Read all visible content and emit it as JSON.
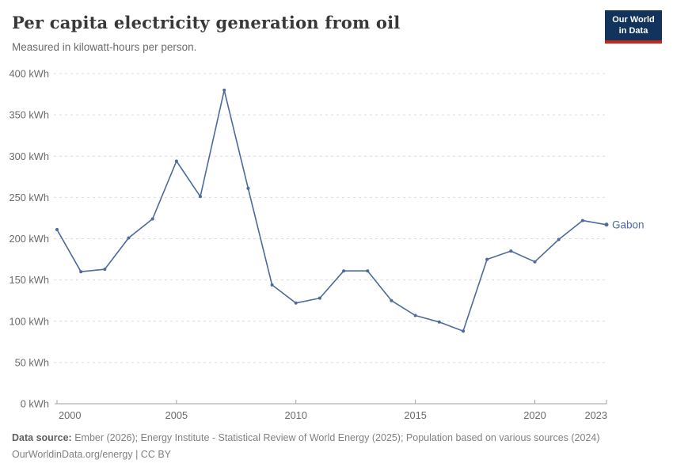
{
  "header": {
    "title": "Per capita electricity generation from oil",
    "subtitle": "Measured in kilowatt-hours per person.",
    "logo": {
      "line1": "Our World",
      "line2": "in Data"
    }
  },
  "chart_data": {
    "type": "line",
    "title": "Per capita electricity generation from oil",
    "subtitle": "Measured in kilowatt-hours per person.",
    "unit": "kWh",
    "x": [
      2000,
      2001,
      2002,
      2003,
      2004,
      2005,
      2006,
      2007,
      2008,
      2009,
      2010,
      2011,
      2012,
      2013,
      2014,
      2015,
      2016,
      2017,
      2018,
      2019,
      2020,
      2021,
      2022,
      2023
    ],
    "series": [
      {
        "name": "Gabon",
        "values": [
          211,
          160,
          163,
          201,
          224,
          294,
          251,
          380,
          261,
          144,
          122,
          128,
          161,
          161,
          125,
          107,
          99,
          88,
          175,
          185,
          172,
          199,
          222,
          217
        ]
      }
    ],
    "ylim": [
      0,
      400
    ],
    "yticks": [
      {
        "value": 0,
        "label": "0 kWh"
      },
      {
        "value": 50,
        "label": "50 kWh"
      },
      {
        "value": 100,
        "label": "100 kWh"
      },
      {
        "value": 150,
        "label": "150 kWh"
      },
      {
        "value": 200,
        "label": "200 kWh"
      },
      {
        "value": 250,
        "label": "250 kWh"
      },
      {
        "value": 300,
        "label": "300 kWh"
      },
      {
        "value": 350,
        "label": "350 kWh"
      },
      {
        "value": 400,
        "label": "400 kWh"
      }
    ],
    "xticks": [
      {
        "value": 2000,
        "label": "2000"
      },
      {
        "value": 2005,
        "label": "2005"
      },
      {
        "value": 2010,
        "label": "2010"
      },
      {
        "value": 2015,
        "label": "2015"
      },
      {
        "value": 2020,
        "label": "2020"
      },
      {
        "value": 2023,
        "label": "2023"
      }
    ],
    "grid": "horizontal-dashed",
    "legend_position": "end-of-line",
    "end_label": "Gabon"
  },
  "colors": {
    "series_line": "#4c6a9c",
    "gridline": "#dcdcdc",
    "axis_line": "#a3a3a3",
    "tick_text": "#6a6a6a",
    "logo_bg": "#12335c",
    "logo_stripe": "#c5281c"
  },
  "footer": {
    "datasource_label": "Data source:",
    "datasource_text": " Ember (2026); Energy Institute - Statistical Review of World Energy (2025); Population based on various sources (2024)",
    "link_line": "OurWorldinData.org/energy | CC BY"
  }
}
